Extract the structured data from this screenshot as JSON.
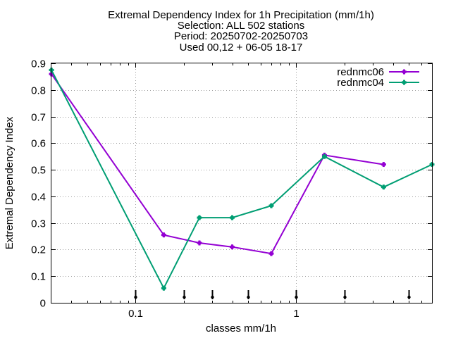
{
  "chart_data": {
    "type": "line",
    "title_lines": [
      "Extremal Dependency Index  for 1h Precipitation (mm/1h)",
      "Selection: ALL    502 stations",
      "Period: 20250702-20250703",
      "Used 00,12 + 06-05 18-17"
    ],
    "xlabel": "classes mm/1h",
    "ylabel": "Extremal Dependency Index",
    "x_scale": "log",
    "xlim": [
      0.03,
      7.0
    ],
    "ylim": [
      0,
      0.9
    ],
    "y_ticks": [
      0,
      0.1,
      0.2,
      0.3,
      0.4,
      0.5,
      0.6,
      0.7,
      0.8,
      0.9
    ],
    "y_tick_labels": [
      "0",
      "0.1",
      "0.2",
      "0.3",
      "0.4",
      "0.5",
      "0.6",
      "0.7",
      "0.8",
      "0.9"
    ],
    "x_ticks": [
      0.1,
      1
    ],
    "x_tick_labels": [
      "0.1",
      "1"
    ],
    "class_markers": [
      0.1,
      0.2,
      0.3,
      0.5,
      1,
      2,
      5
    ],
    "grid": true,
    "legend_position": "top-right",
    "series": [
      {
        "name": "rednmc06",
        "color": "#9400d3",
        "x": [
          0.03,
          0.15,
          0.25,
          0.4,
          0.7,
          1.5,
          3.5
        ],
        "y": [
          0.86,
          0.255,
          0.225,
          0.21,
          0.185,
          0.555,
          0.52
        ]
      },
      {
        "name": "rednmc04",
        "color": "#009e73",
        "x": [
          0.03,
          0.15,
          0.25,
          0.4,
          0.7,
          1.5,
          3.5,
          7.0
        ],
        "y": [
          0.875,
          0.055,
          0.32,
          0.32,
          0.365,
          0.55,
          0.435,
          0.52
        ]
      }
    ]
  }
}
